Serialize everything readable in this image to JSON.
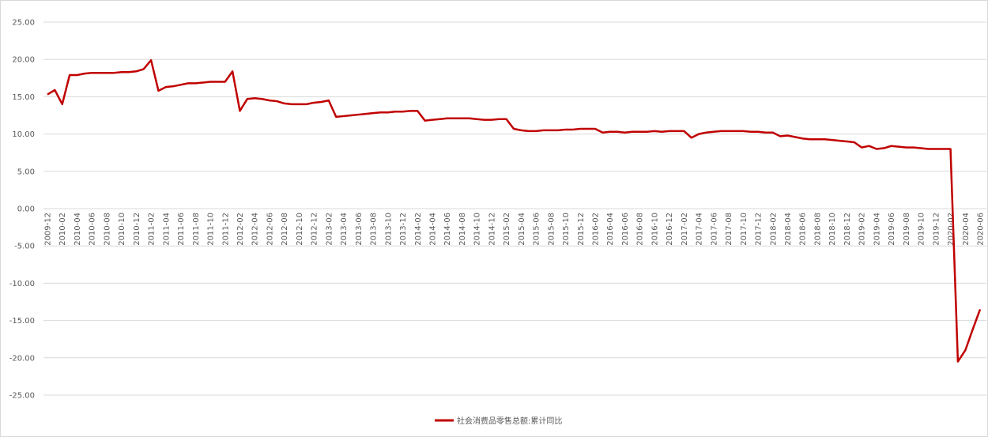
{
  "chart_data": {
    "type": "line",
    "categories": [
      "2009-12",
      null,
      "2010-02",
      null,
      "2010-04",
      null,
      "2010-06",
      null,
      "2010-08",
      null,
      "2010-10",
      null,
      "2010-12",
      null,
      "2011-02",
      null,
      "2011-04",
      null,
      "2011-06",
      null,
      "2011-08",
      null,
      "2011-10",
      null,
      "2011-12",
      null,
      "2012-02",
      null,
      "2012-04",
      null,
      "2012-06",
      null,
      "2012-08",
      null,
      "2012-10",
      null,
      "2012-12",
      null,
      "2013-02",
      null,
      "2013-04",
      null,
      "2013-06",
      null,
      "2013-08",
      null,
      "2013-10",
      null,
      "2013-12",
      null,
      "2014-02",
      null,
      "2014-04",
      null,
      "2014-06",
      null,
      "2014-08",
      null,
      "2014-10",
      null,
      "2014-12",
      null,
      "2015-02",
      null,
      "2015-04",
      null,
      "2015-06",
      null,
      "2015-08",
      null,
      "2015-10",
      null,
      "2015-12",
      null,
      "2016-02",
      null,
      "2016-04",
      null,
      "2016-06",
      null,
      "2016-08",
      null,
      "2016-10",
      null,
      "2016-12",
      null,
      "2017-02",
      null,
      "2017-04",
      null,
      "2017-06",
      null,
      "2017-08",
      null,
      "2017-10",
      null,
      "2017-12",
      null,
      "2018-02",
      null,
      "2018-04",
      null,
      "2018-06",
      null,
      "2018-08",
      null,
      "2018-10",
      null,
      "2018-12",
      null,
      "2019-02",
      null,
      "2019-04",
      null,
      "2019-06",
      null,
      "2019-08",
      null,
      "2019-10",
      null,
      "2019-12",
      null,
      "2020-02",
      null,
      "2020-04",
      null,
      "2020-06"
    ],
    "series": [
      {
        "name": "社会消费品零售总额:累计同比",
        "color": "#c00000",
        "values": [
          15.3,
          15.9,
          14.0,
          17.9,
          17.9,
          18.1,
          18.2,
          18.2,
          18.2,
          18.2,
          18.3,
          18.3,
          18.4,
          18.7,
          19.9,
          15.8,
          16.3,
          16.4,
          16.6,
          16.8,
          16.8,
          16.9,
          17.0,
          17.0,
          17.0,
          18.4,
          13.1,
          14.7,
          14.8,
          14.7,
          14.5,
          14.4,
          14.1,
          14.0,
          14.0,
          14.0,
          14.2,
          14.3,
          14.5,
          12.3,
          12.4,
          12.5,
          12.6,
          12.7,
          12.8,
          12.9,
          12.9,
          13.0,
          13.0,
          13.1,
          13.1,
          11.8,
          11.9,
          12.0,
          12.1,
          12.1,
          12.1,
          12.1,
          12.0,
          11.9,
          11.9,
          12.0,
          12.0,
          10.7,
          10.5,
          10.4,
          10.4,
          10.5,
          10.5,
          10.5,
          10.6,
          10.6,
          10.7,
          10.7,
          10.7,
          10.2,
          10.3,
          10.3,
          10.2,
          10.3,
          10.3,
          10.3,
          10.4,
          10.3,
          10.4,
          10.4,
          10.4,
          9.5,
          10.0,
          10.2,
          10.3,
          10.4,
          10.4,
          10.4,
          10.4,
          10.3,
          10.3,
          10.2,
          10.2,
          9.7,
          9.8,
          9.6,
          9.4,
          9.3,
          9.3,
          9.3,
          9.2,
          9.1,
          9.0,
          8.9,
          8.2,
          8.4,
          8.0,
          8.1,
          8.4,
          8.3,
          8.2,
          8.2,
          8.1,
          8.0,
          8.0,
          8.0,
          8.0,
          -20.5,
          -19.0,
          -16.2,
          -13.5
        ]
      }
    ],
    "ylim": [
      -25,
      25
    ],
    "yticks": [
      {
        "value": 25,
        "label": "25.00"
      },
      {
        "value": 20,
        "label": "20.00"
      },
      {
        "value": 15,
        "label": "15.00"
      },
      {
        "value": 10,
        "label": "10.00"
      },
      {
        "value": 5,
        "label": "5.00"
      },
      {
        "value": 0,
        "label": "0.00"
      },
      {
        "value": -5,
        "label": "-5.00"
      },
      {
        "value": -10,
        "label": "-10.00"
      },
      {
        "value": -15,
        "label": "-15.00"
      },
      {
        "value": -20,
        "label": "-20.00"
      },
      {
        "value": -25,
        "label": "-25.00"
      }
    ],
    "grid": true,
    "legend": "bottom"
  }
}
